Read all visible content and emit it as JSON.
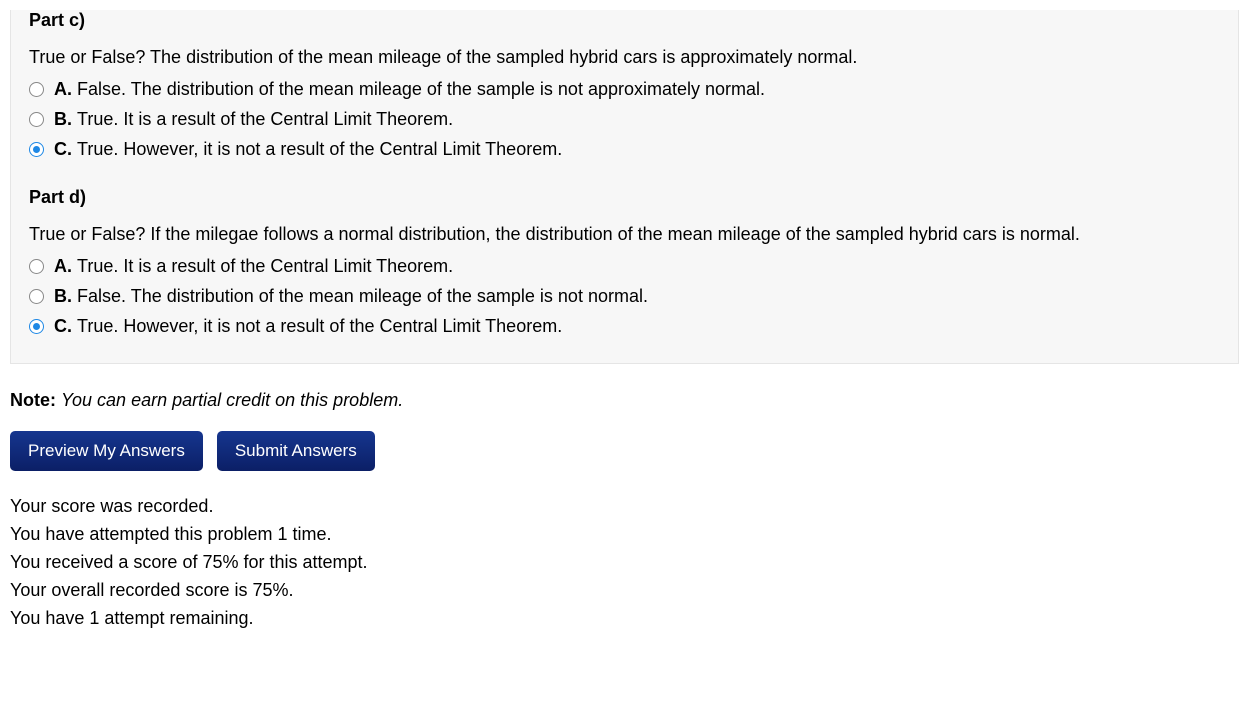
{
  "problem": {
    "parts": [
      {
        "heading": "Part c)",
        "question": "True or False? The distribution of the mean mileage of the sampled hybrid cars is approximately normal.",
        "options": [
          {
            "letter": "A.",
            "text": "False. The distribution of the mean mileage of the sample is not approximately normal.",
            "selected": false
          },
          {
            "letter": "B.",
            "text": "True. It is a result of the Central Limit Theorem.",
            "selected": false
          },
          {
            "letter": "C.",
            "text": "True. However, it is not a result of the Central Limit Theorem.",
            "selected": true
          }
        ]
      },
      {
        "heading": "Part d)",
        "question": "True or False? If the milegae follows a normal distribution, the distribution of the mean mileage of the sampled hybrid cars is normal.",
        "options": [
          {
            "letter": "A.",
            "text": "True. It is a result of the Central Limit Theorem.",
            "selected": false
          },
          {
            "letter": "B.",
            "text": "False. The distribution of the mean mileage of the sample is not normal.",
            "selected": false
          },
          {
            "letter": "C.",
            "text": "True. However, it is not a result of the Central Limit Theorem.",
            "selected": true
          }
        ]
      }
    ]
  },
  "note": {
    "label": "Note:",
    "text": "You can earn partial credit on this problem."
  },
  "buttons": {
    "preview": "Preview My Answers",
    "submit": "Submit Answers"
  },
  "score": {
    "lines": [
      "Your score was recorded.",
      "You have attempted this problem 1 time.",
      "You received a score of 75% for this attempt.",
      "Your overall recorded score is 75%.",
      "You have 1 attempt remaining."
    ]
  },
  "colors": {
    "box_bg": "#f7f7f7",
    "radio_selected": "#1e88e5",
    "button_bg_top": "#16368f",
    "button_bg_bottom": "#0b1f66"
  }
}
